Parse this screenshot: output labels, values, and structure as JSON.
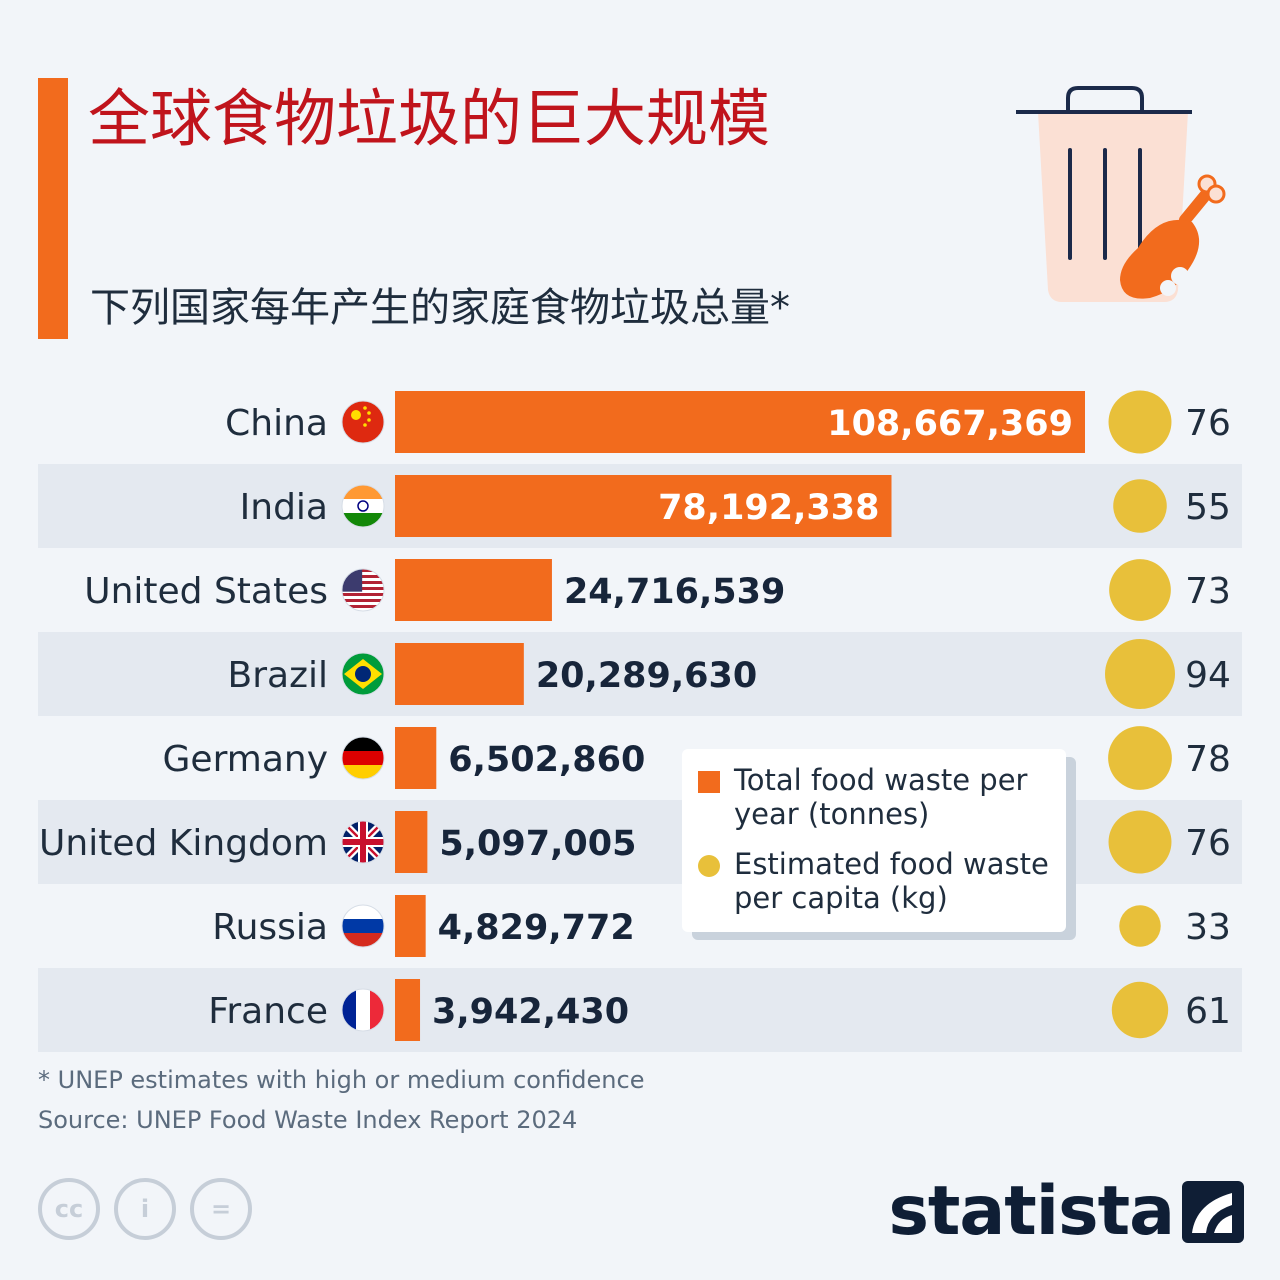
{
  "header": {
    "title": "全球食物垃圾的巨大规模",
    "subtitle": "下列国家每年产生的家庭食物垃圾总量*"
  },
  "chart_data": {
    "type": "bar",
    "orientation": "horizontal",
    "categories": [
      "China",
      "India",
      "United States",
      "Brazil",
      "Germany",
      "United Kingdom",
      "Russia",
      "France"
    ],
    "value_labels": [
      "108,667,369",
      "78,192,338",
      "24,716,539",
      "20,289,630",
      "6,502,860",
      "5,097,005",
      "4,829,772",
      "3,942,430"
    ],
    "series": [
      {
        "name": "Total food waste per year (tonnes)",
        "values": [
          108667369,
          78192338,
          24716539,
          20289630,
          6502860,
          5097005,
          4829772,
          3942430
        ],
        "color": "#f26b1d"
      },
      {
        "name": "Estimated food waste per capita (kg)",
        "values": [
          76,
          55,
          73,
          94,
          78,
          76,
          33,
          61
        ],
        "color": "#e8c03a",
        "mark": "bubble"
      }
    ],
    "flags": [
      "china-flag-icon",
      "india-flag-icon",
      "us-flag-icon",
      "brazil-flag-icon",
      "germany-flag-icon",
      "uk-flag-icon",
      "russia-flag-icon",
      "france-flag-icon"
    ],
    "legend_placement": "center-right",
    "row_stripes": true
  },
  "legend": {
    "total_label": "Total food waste per year (tonnes)",
    "per_capita_label": "Estimated food waste per capita (kg)"
  },
  "footer": {
    "footnote": "* UNEP estimates with high or medium confidence",
    "source": "Source: UNEP Food Waste Index Report 2024",
    "brand": "statista",
    "license_icons": [
      "cc-icon",
      "attribution-icon",
      "no-derivatives-icon"
    ],
    "license_glyphs": [
      "cc",
      "i",
      "="
    ]
  },
  "colors": {
    "accent": "#f26b1d",
    "title": "#c0141c",
    "bubble": "#e8c03a",
    "stripe": "#e4e9f0",
    "text": "#1f2d3d"
  }
}
